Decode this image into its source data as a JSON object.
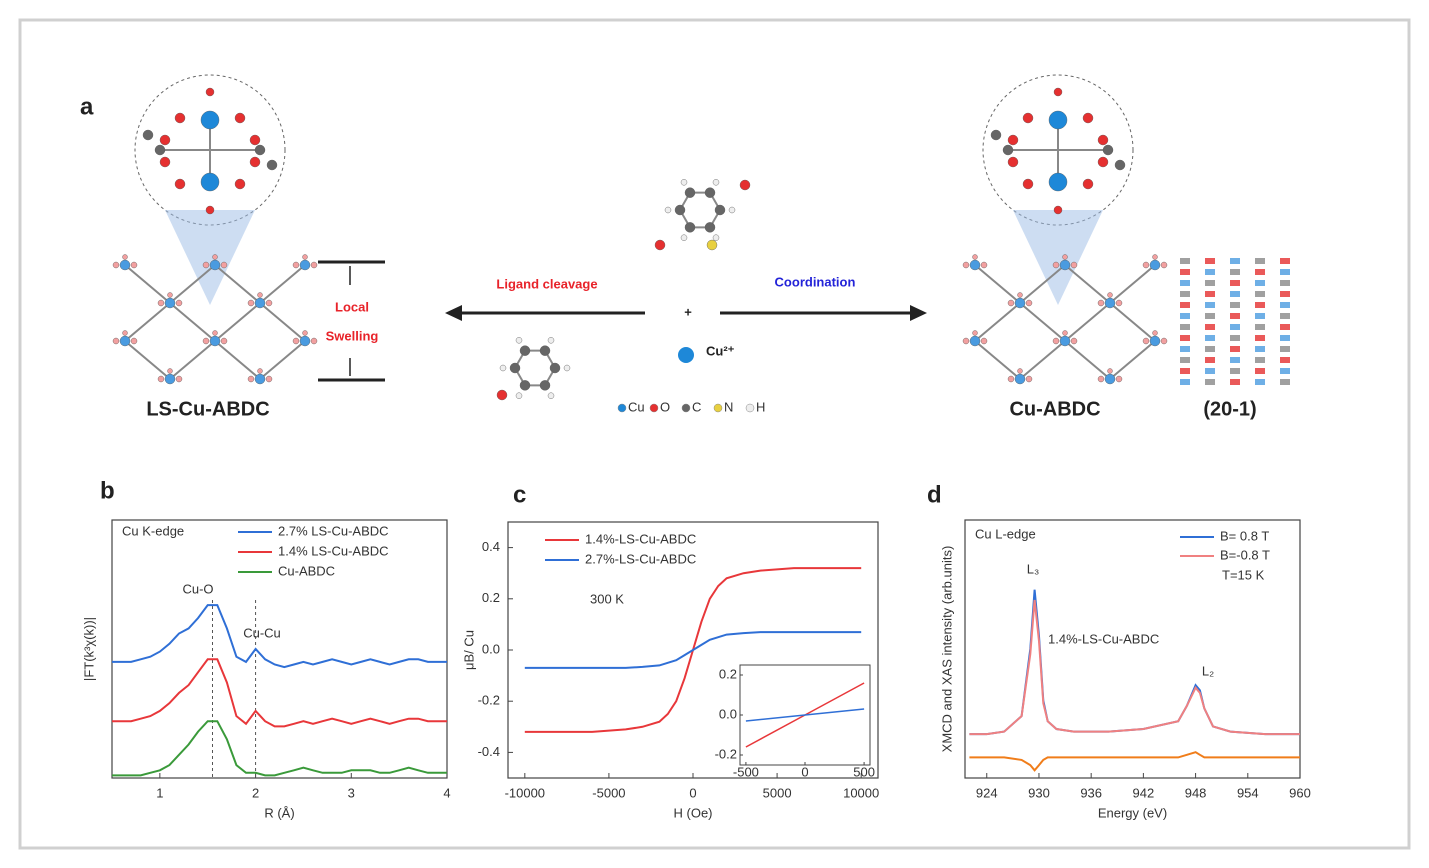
{
  "schematic": {
    "panel": "a",
    "left_label": "LS-Cu-ABDC",
    "swelling": [
      "Local",
      "Swelling"
    ],
    "cleavage": "Ligand cleavage",
    "coordination": "Coordination",
    "plus": "+",
    "ion": "Cu²⁺",
    "element_legend": [
      "Cu",
      "O",
      "C",
      "N",
      "H"
    ],
    "right_label": "Cu-ABDC",
    "plane": "(20-1)"
  },
  "chart_data": [
    {
      "type": "line",
      "panel": "b",
      "xlabel": "R (Å)",
      "ylabel": "|FT(k³χ(k))|",
      "xlim": [
        0.5,
        4
      ],
      "xticks": [
        1,
        2,
        3,
        4
      ],
      "ylim": [
        0,
        1
      ],
      "annotations": [
        "Cu K-edge",
        "Cu-O",
        "Cu-Cu"
      ],
      "x": [
        0.5,
        0.6,
        0.7,
        0.8,
        0.9,
        1.0,
        1.1,
        1.2,
        1.3,
        1.4,
        1.5,
        1.6,
        1.7,
        1.8,
        1.9,
        2.0,
        2.1,
        2.2,
        2.3,
        2.4,
        2.5,
        2.6,
        2.7,
        2.8,
        2.9,
        3.0,
        3.1,
        3.2,
        3.3,
        3.4,
        3.5,
        3.6,
        3.7,
        3.8,
        3.9,
        4.0
      ],
      "series": [
        {
          "name": "2.7% LS-Cu-ABDC",
          "color": "#2f6fd6",
          "values": [
            0.45,
            0.45,
            0.45,
            0.46,
            0.47,
            0.49,
            0.52,
            0.56,
            0.58,
            0.62,
            0.67,
            0.67,
            0.58,
            0.47,
            0.45,
            0.5,
            0.46,
            0.44,
            0.43,
            0.44,
            0.45,
            0.44,
            0.45,
            0.46,
            0.45,
            0.44,
            0.45,
            0.46,
            0.45,
            0.44,
            0.45,
            0.46,
            0.46,
            0.45,
            0.45,
            0.45
          ]
        },
        {
          "name": "1.4% LS-Cu-ABDC",
          "color": "#e8373a",
          "values": [
            0.22,
            0.22,
            0.22,
            0.23,
            0.24,
            0.26,
            0.29,
            0.33,
            0.36,
            0.41,
            0.46,
            0.46,
            0.37,
            0.24,
            0.21,
            0.26,
            0.22,
            0.2,
            0.2,
            0.21,
            0.22,
            0.21,
            0.22,
            0.23,
            0.22,
            0.21,
            0.22,
            0.23,
            0.22,
            0.21,
            0.22,
            0.23,
            0.23,
            0.22,
            0.22,
            0.22
          ]
        },
        {
          "name": "Cu-ABDC",
          "color": "#3a9a3a",
          "values": [
            0.01,
            0.01,
            0.01,
            0.01,
            0.02,
            0.03,
            0.05,
            0.09,
            0.13,
            0.18,
            0.22,
            0.22,
            0.15,
            0.05,
            0.02,
            0.02,
            0.01,
            0.01,
            0.02,
            0.03,
            0.04,
            0.03,
            0.02,
            0.02,
            0.02,
            0.03,
            0.03,
            0.03,
            0.02,
            0.02,
            0.03,
            0.04,
            0.03,
            0.02,
            0.02,
            0.02
          ]
        }
      ]
    },
    {
      "type": "line",
      "panel": "c",
      "xlabel": "H (Oe)",
      "ylabel": "μB/ Cu",
      "xlim": [
        -11000,
        11000
      ],
      "xticks": [
        -10000,
        -5000,
        0,
        5000,
        10000
      ],
      "ylim": [
        -0.5,
        0.5
      ],
      "yticks": [
        -0.4,
        -0.2,
        {
          "value": 0,
          "label": "0.0"
        },
        0.2,
        0.4
      ],
      "annotations": [
        "300 K"
      ],
      "x": [
        -10000,
        -8000,
        -6000,
        -4000,
        -3000,
        -2000,
        -1500,
        -1000,
        -500,
        0,
        500,
        1000,
        1500,
        2000,
        3000,
        4000,
        6000,
        8000,
        10000
      ],
      "series": [
        {
          "name": "1.4%-LS-Cu-ABDC",
          "color": "#e8373a",
          "values": [
            -0.32,
            -0.32,
            -0.32,
            -0.31,
            -0.3,
            -0.28,
            -0.25,
            -0.2,
            -0.11,
            0,
            0.11,
            0.2,
            0.25,
            0.28,
            0.3,
            0.31,
            0.32,
            0.32,
            0.32
          ]
        },
        {
          "name": "2.7%-LS-Cu-ABDC",
          "color": "#2f6fd6",
          "values": [
            -0.07,
            -0.07,
            -0.07,
            -0.07,
            -0.066,
            -0.06,
            -0.05,
            -0.04,
            -0.02,
            0,
            0.02,
            0.04,
            0.05,
            0.06,
            0.066,
            0.07,
            0.07,
            0.07,
            0.07
          ]
        }
      ],
      "inset": {
        "xlim": [
          -550,
          550
        ],
        "xticks": [
          -500,
          0,
          500
        ],
        "ylim": [
          -0.25,
          0.25
        ],
        "yticks": [
          -0.2,
          {
            "value": 0,
            "label": "0.0"
          },
          0.2
        ],
        "x": [
          -500,
          0,
          500
        ],
        "series": [
          {
            "values": [
              -0.16,
              0,
              0.16
            ]
          },
          {
            "values": [
              -0.03,
              0,
              0.03
            ]
          }
        ]
      }
    },
    {
      "type": "line",
      "panel": "d",
      "xlabel": "Energy (eV)",
      "ylabel": "XMCD and XAS intensity (arb.units)",
      "xlim": [
        921.5,
        960
      ],
      "xticks": [
        924,
        930,
        936,
        942,
        948,
        954,
        960
      ],
      "ylim": [
        0,
        1
      ],
      "annotations": [
        "Cu L-edge",
        "L₃",
        "L₂",
        "1.4%-LS-Cu-ABDC",
        "T=15 K"
      ],
      "x": [
        922,
        924,
        926,
        928,
        929,
        929.5,
        930,
        930.5,
        931,
        932,
        934,
        938,
        942,
        946,
        947,
        948,
        948.5,
        949,
        950,
        952,
        956,
        960
      ],
      "series": [
        {
          "name": "B= 0.8 T",
          "color": "#2f6fd6",
          "values": [
            0.17,
            0.17,
            0.18,
            0.24,
            0.5,
            0.73,
            0.55,
            0.3,
            0.22,
            0.19,
            0.18,
            0.18,
            0.19,
            0.22,
            0.28,
            0.36,
            0.34,
            0.27,
            0.2,
            0.18,
            0.17,
            0.17
          ]
        },
        {
          "name": "B=-0.8 T",
          "color": "#f08080",
          "values": [
            0.17,
            0.17,
            0.18,
            0.24,
            0.48,
            0.69,
            0.53,
            0.29,
            0.22,
            0.19,
            0.18,
            0.18,
            0.19,
            0.22,
            0.28,
            0.35,
            0.33,
            0.27,
            0.2,
            0.18,
            0.17,
            0.17
          ]
        },
        {
          "color": "#f07d1a",
          "values": [
            0.08,
            0.08,
            0.08,
            0.07,
            0.05,
            0.03,
            0.05,
            0.07,
            0.08,
            0.08,
            0.08,
            0.08,
            0.08,
            0.08,
            0.09,
            0.1,
            0.09,
            0.08,
            0.08,
            0.08,
            0.08,
            0.08
          ]
        }
      ]
    }
  ]
}
